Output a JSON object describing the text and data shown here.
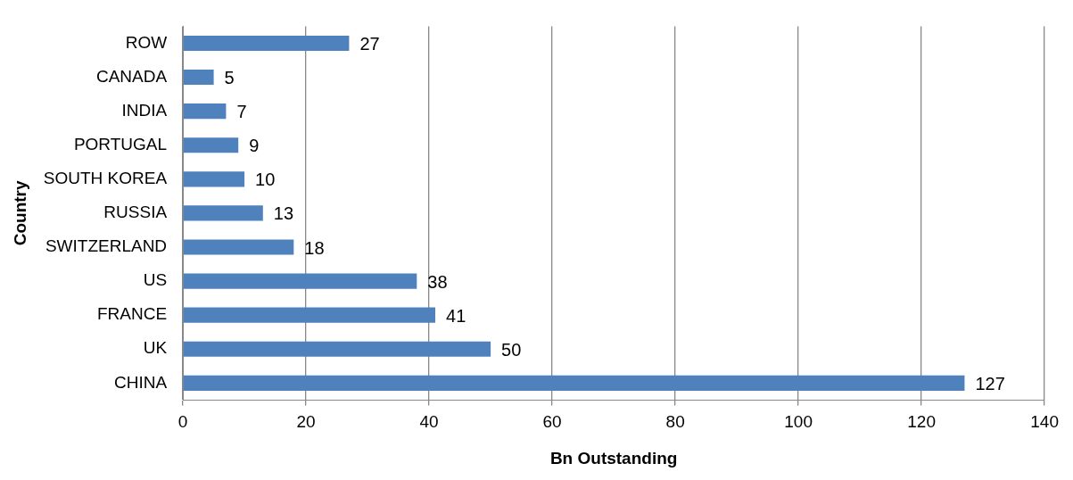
{
  "chart_data": {
    "type": "bar",
    "orientation": "horizontal",
    "xlabel": "Bn Outstanding",
    "ylabel": "Country",
    "categories": [
      "ROW",
      "CANADA",
      "INDIA",
      "PORTUGAL",
      "SOUTH KOREA",
      "RUSSIA",
      "SWITZERLAND",
      "US",
      "FRANCE",
      "UK",
      "CHINA"
    ],
    "values": [
      27,
      5,
      7,
      9,
      10,
      13,
      18,
      38,
      41,
      50,
      127
    ],
    "color": "#4f81bd",
    "xlim": [
      0,
      140
    ],
    "xticks": [
      0,
      20,
      40,
      60,
      80,
      100,
      120,
      140
    ],
    "grid": "x",
    "data_labels": true
  }
}
